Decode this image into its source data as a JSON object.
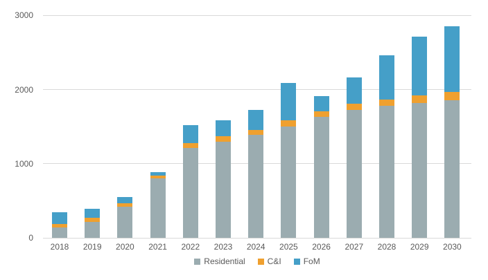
{
  "chart_data": {
    "type": "bar",
    "stacked": true,
    "title": "",
    "categories": [
      "2018",
      "2019",
      "2020",
      "2021",
      "2022",
      "2023",
      "2024",
      "2025",
      "2026",
      "2027",
      "2028",
      "2029",
      "2030"
    ],
    "series": [
      {
        "name": "Residential",
        "color": "#9BACB0",
        "values": [
          140,
          220,
          425,
          800,
          1210,
          1300,
          1390,
          1500,
          1630,
          1725,
          1780,
          1820,
          1855
        ]
      },
      {
        "name": "C&I",
        "color": "#EFA02F",
        "values": [
          50,
          55,
          40,
          40,
          70,
          75,
          70,
          85,
          75,
          85,
          90,
          100,
          115
        ]
      },
      {
        "name": "FoM",
        "color": "#459FC8",
        "values": [
          160,
          115,
          85,
          50,
          240,
          210,
          270,
          505,
          205,
          350,
          590,
          790,
          880
        ]
      }
    ],
    "totals": [
      350,
      390,
      550,
      890,
      1520,
      1585,
      1730,
      2090,
      1910,
      2160,
      2460,
      2710,
      2850
    ],
    "xlabel": "",
    "ylabel": "",
    "ylim": [
      0,
      3000
    ],
    "yticks": [
      0,
      1000,
      2000,
      3000
    ],
    "grid": true,
    "legend_position": "bottom"
  },
  "colors": {
    "background": "#FFFFFF",
    "gridline": "#D9D9D9",
    "axis_text": "#595959"
  }
}
